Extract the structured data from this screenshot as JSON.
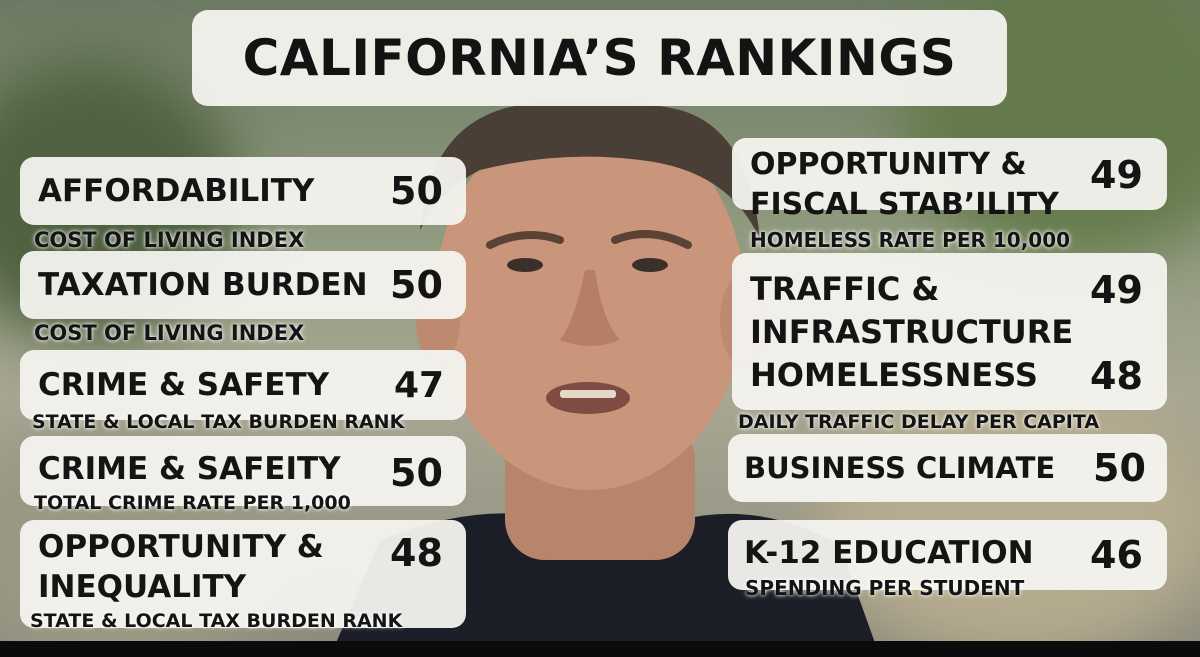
{
  "title": "CALIFORNIA’S RANKINGS",
  "left": [
    {
      "label": "AFFORDABILITY",
      "rank": "50",
      "sub": "COST OF LIVING INDEX"
    },
    {
      "label": "TAXATION BURDEN",
      "rank": "50",
      "sub": "COST OF LIVING INDEX"
    },
    {
      "label": "CRIME & SAFETY",
      "rank": "47",
      "sub": "STATE & LOCAL TAX BURDEN RANK"
    },
    {
      "label": "CRIME & SAFEITY",
      "rank": "50",
      "sub": "TOTAL CRIME RATE PER 1,000"
    },
    {
      "label_line1": "OPPORTUNITY &",
      "label_line2": "INEQUALITY",
      "rank": "48",
      "sub": "STATE & LOCAL TAX BURDEN RANK"
    }
  ],
  "right": [
    {
      "label_line1": "OPPORTUNITY &",
      "label_line2": "FISCAL STAB’ILITY",
      "rank": "49",
      "sub": "HOMELESS RATE PER 10,000"
    },
    {
      "label_line1": "TRAFFIC &",
      "label_line2": "INFRASTRUCTURE",
      "rank": "49",
      "label2": "HOMELESSNESS",
      "rank2": "48",
      "sub": "DAILY TRAFFIC DELAY PER CAPITA"
    },
    {
      "label": "BUSINESS CLIMATE",
      "rank": "50"
    },
    {
      "label": "K-12 EDUCATION",
      "rank": "46",
      "sub": "SPENDING PER STUDENT"
    }
  ]
}
